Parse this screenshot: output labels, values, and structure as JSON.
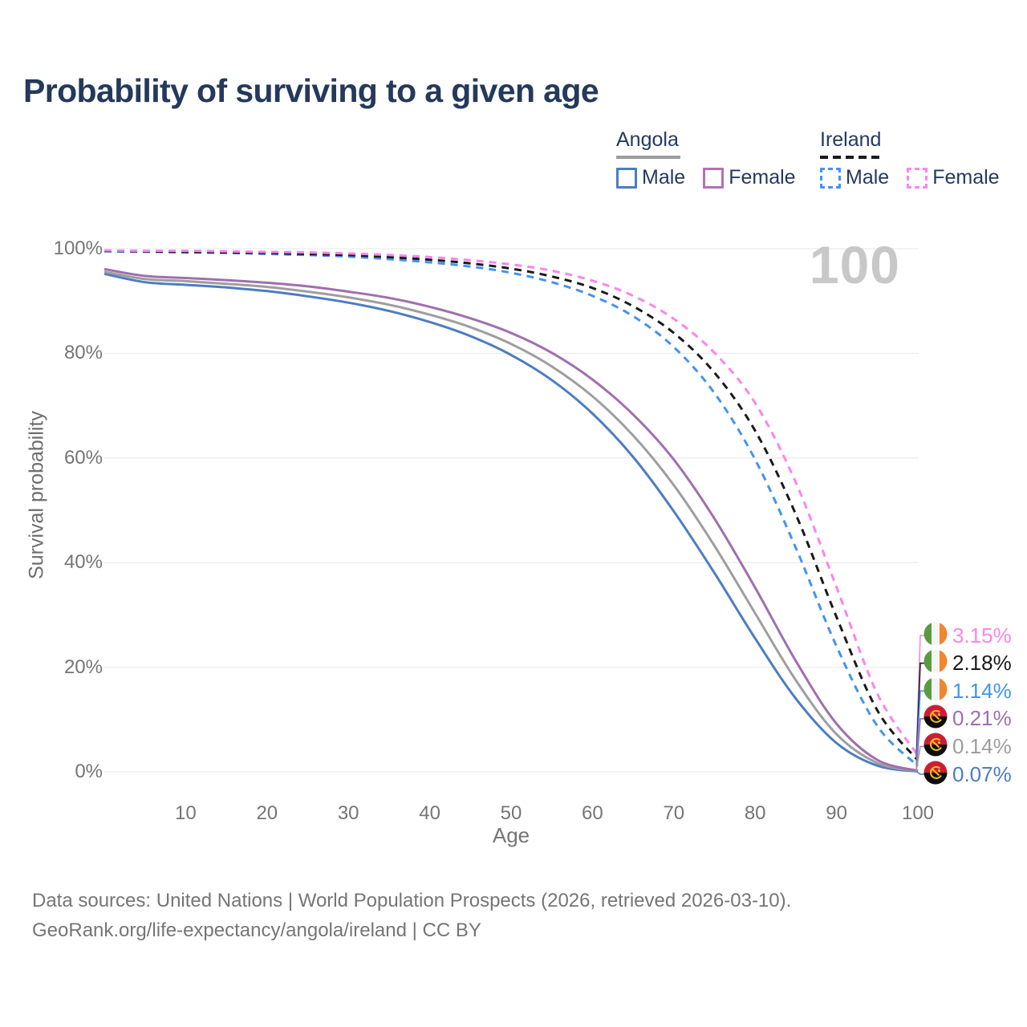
{
  "title": "Probability of surviving to a given age",
  "hover_age_indicator": "100",
  "legend": {
    "groups": [
      {
        "country": "Angola",
        "underline_style": "solid",
        "underline_color": "#9e9e9e",
        "items": [
          {
            "label": "Male",
            "color": "#4d7cc2",
            "dashed": false
          },
          {
            "label": "Female",
            "color": "#b072b2",
            "dashed": false
          }
        ]
      },
      {
        "country": "Ireland",
        "underline_style": "dashed",
        "underline_color": "#1a1a1a",
        "items": [
          {
            "label": "Male",
            "color": "#4493f0",
            "dashed": true
          },
          {
            "label": "Female",
            "color": "#fb85ea",
            "dashed": true
          }
        ]
      }
    ]
  },
  "axes": {
    "y_label": "Survival probability",
    "x_label": "Age",
    "y_ticks": [
      "0%",
      "20%",
      "40%",
      "60%",
      "80%",
      "100%"
    ],
    "x_ticks": [
      "10",
      "20",
      "30",
      "40",
      "50",
      "60",
      "70",
      "80",
      "90",
      "100"
    ]
  },
  "chart_data": {
    "type": "line",
    "title": "Probability of surviving to a given age",
    "xlabel": "Age",
    "ylabel": "Survival probability",
    "xlim": [
      0,
      100
    ],
    "ylim": [
      0,
      100
    ],
    "grid": "horizontal",
    "legend_position": "top-right",
    "x": [
      0,
      5,
      10,
      15,
      20,
      25,
      30,
      35,
      40,
      45,
      50,
      55,
      60,
      65,
      70,
      75,
      80,
      85,
      90,
      95,
      100
    ],
    "series": [
      {
        "name": "Angola Male",
        "color": "#4d7cc2",
        "dashed": false,
        "values": [
          95.2,
          93.6,
          93.1,
          92.6,
          91.9,
          90.9,
          89.7,
          88.1,
          86.0,
          83.3,
          79.7,
          74.9,
          68.5,
          60.2,
          49.8,
          38.0,
          25.5,
          14.0,
          5.5,
          1.2,
          0.07
        ]
      },
      {
        "name": "Angola Both sexes",
        "color": "#9e9e9e",
        "dashed": false,
        "values": [
          95.6,
          94.2,
          93.8,
          93.3,
          92.7,
          91.8,
          90.7,
          89.3,
          87.4,
          85.0,
          81.8,
          77.5,
          71.8,
          64.3,
          54.8,
          43.2,
          30.3,
          17.5,
          7.2,
          1.7,
          0.14
        ]
      },
      {
        "name": "Angola Female",
        "color": "#a06fae",
        "dashed": false,
        "values": [
          96.1,
          94.8,
          94.4,
          94.0,
          93.5,
          92.8,
          91.8,
          90.6,
          88.9,
          86.7,
          83.9,
          80.1,
          75.0,
          68.3,
          59.7,
          48.4,
          35.2,
          21.2,
          9.2,
          2.3,
          0.21
        ]
      },
      {
        "name": "Ireland Male",
        "color": "#4493f0",
        "dashed": true,
        "values": [
          99.5,
          99.4,
          99.3,
          99.2,
          99.0,
          98.8,
          98.5,
          98.0,
          97.4,
          96.6,
          95.4,
          93.6,
          91.0,
          87.1,
          81.2,
          72.4,
          59.7,
          42.8,
          24.0,
          8.8,
          1.14
        ]
      },
      {
        "name": "Ireland Both sexes",
        "color": "#1a1a1a",
        "dashed": true,
        "values": [
          99.6,
          99.5,
          99.4,
          99.3,
          99.2,
          99.0,
          98.8,
          98.4,
          97.9,
          97.2,
          96.2,
          94.7,
          92.5,
          89.0,
          83.9,
          76.3,
          65.2,
          49.2,
          29.6,
          11.8,
          2.18
        ]
      },
      {
        "name": "Ireland Female",
        "color": "#fb85ea",
        "dashed": true,
        "values": [
          99.7,
          99.6,
          99.6,
          99.5,
          99.4,
          99.3,
          99.1,
          98.8,
          98.4,
          97.8,
          97.0,
          95.8,
          93.9,
          91.0,
          86.6,
          80.1,
          70.5,
          55.3,
          35.3,
          15.0,
          3.15
        ]
      }
    ]
  },
  "end_labels": [
    {
      "value": "3.15%",
      "country": "Ireland",
      "series": "Ireland Female",
      "color": "#fb85ea"
    },
    {
      "value": "2.18%",
      "country": "Ireland",
      "series": "Ireland Both sexes",
      "color": "#1a1a1a"
    },
    {
      "value": "1.14%",
      "country": "Ireland",
      "series": "Ireland Male",
      "color": "#4493f0"
    },
    {
      "value": "0.21%",
      "country": "Angola",
      "series": "Angola Female",
      "color": "#a06fae"
    },
    {
      "value": "0.14%",
      "country": "Angola",
      "series": "Angola Both sexes",
      "color": "#9e9e9e"
    },
    {
      "value": "0.07%",
      "country": "Angola",
      "series": "Angola Male",
      "color": "#4d7cc2"
    }
  ],
  "footer": {
    "line1": "Data sources: United Nations | World Population Prospects (2026, retrieved 2026-03-10).",
    "line2": "GeoRank.org/life-expectancy/angola/ireland | CC BY"
  },
  "colors": {
    "title_text": "#24395b",
    "tick_text": "#757575",
    "gridline": "#ececec",
    "hover_indicator": "#c8c8c8"
  }
}
